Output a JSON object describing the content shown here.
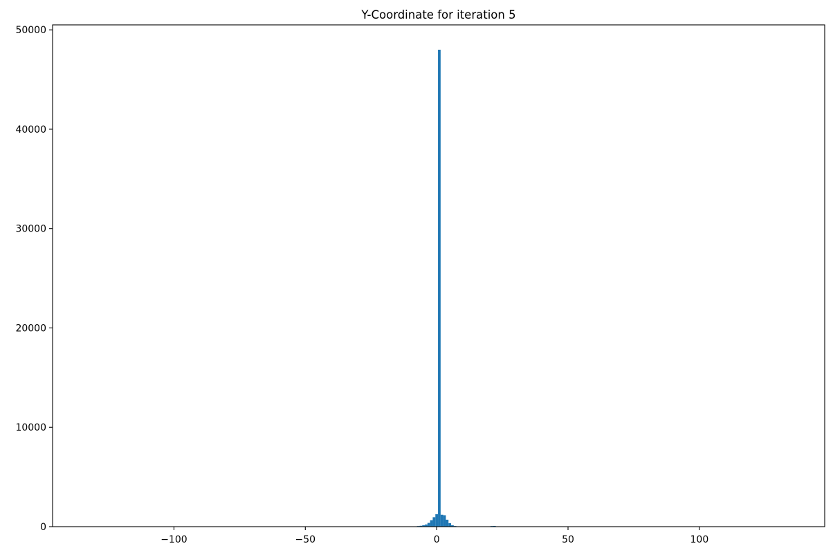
{
  "chart_data": {
    "type": "bar",
    "title": "Y-Coordinate for iteration 5",
    "xlabel": "",
    "ylabel": "",
    "xlim": [
      -146.2,
      147.7
    ],
    "ylim": [
      0,
      50500
    ],
    "x_ticks": [
      -100,
      -50,
      0,
      50,
      100
    ],
    "x_tick_labels": [
      "−100",
      "−50",
      "0",
      "50",
      "100"
    ],
    "y_ticks": [
      0,
      10000,
      20000,
      30000,
      40000,
      50000
    ],
    "y_tick_labels": [
      "0",
      "10000",
      "20000",
      "30000",
      "40000",
      "50000"
    ],
    "bin_width": 1.0,
    "grid": false,
    "bar_color": "#1f77b4",
    "bins": [
      {
        "x": -9,
        "count": 20
      },
      {
        "x": -8,
        "count": 35
      },
      {
        "x": -7,
        "count": 60
      },
      {
        "x": -6,
        "count": 90
      },
      {
        "x": -5,
        "count": 140
      },
      {
        "x": -4,
        "count": 220
      },
      {
        "x": -3,
        "count": 380
      },
      {
        "x": -2,
        "count": 650
      },
      {
        "x": -1,
        "count": 950
      },
      {
        "x": 0,
        "count": 1250
      },
      {
        "x": 1,
        "count": 48000
      },
      {
        "x": 2,
        "count": 1200
      },
      {
        "x": 3,
        "count": 1150
      },
      {
        "x": 4,
        "count": 700
      },
      {
        "x": 5,
        "count": 350
      },
      {
        "x": 6,
        "count": 140
      },
      {
        "x": 7,
        "count": 60
      },
      {
        "x": 8,
        "count": 25
      },
      {
        "x": 21,
        "count": 60
      },
      {
        "x": 22,
        "count": 70
      }
    ]
  }
}
